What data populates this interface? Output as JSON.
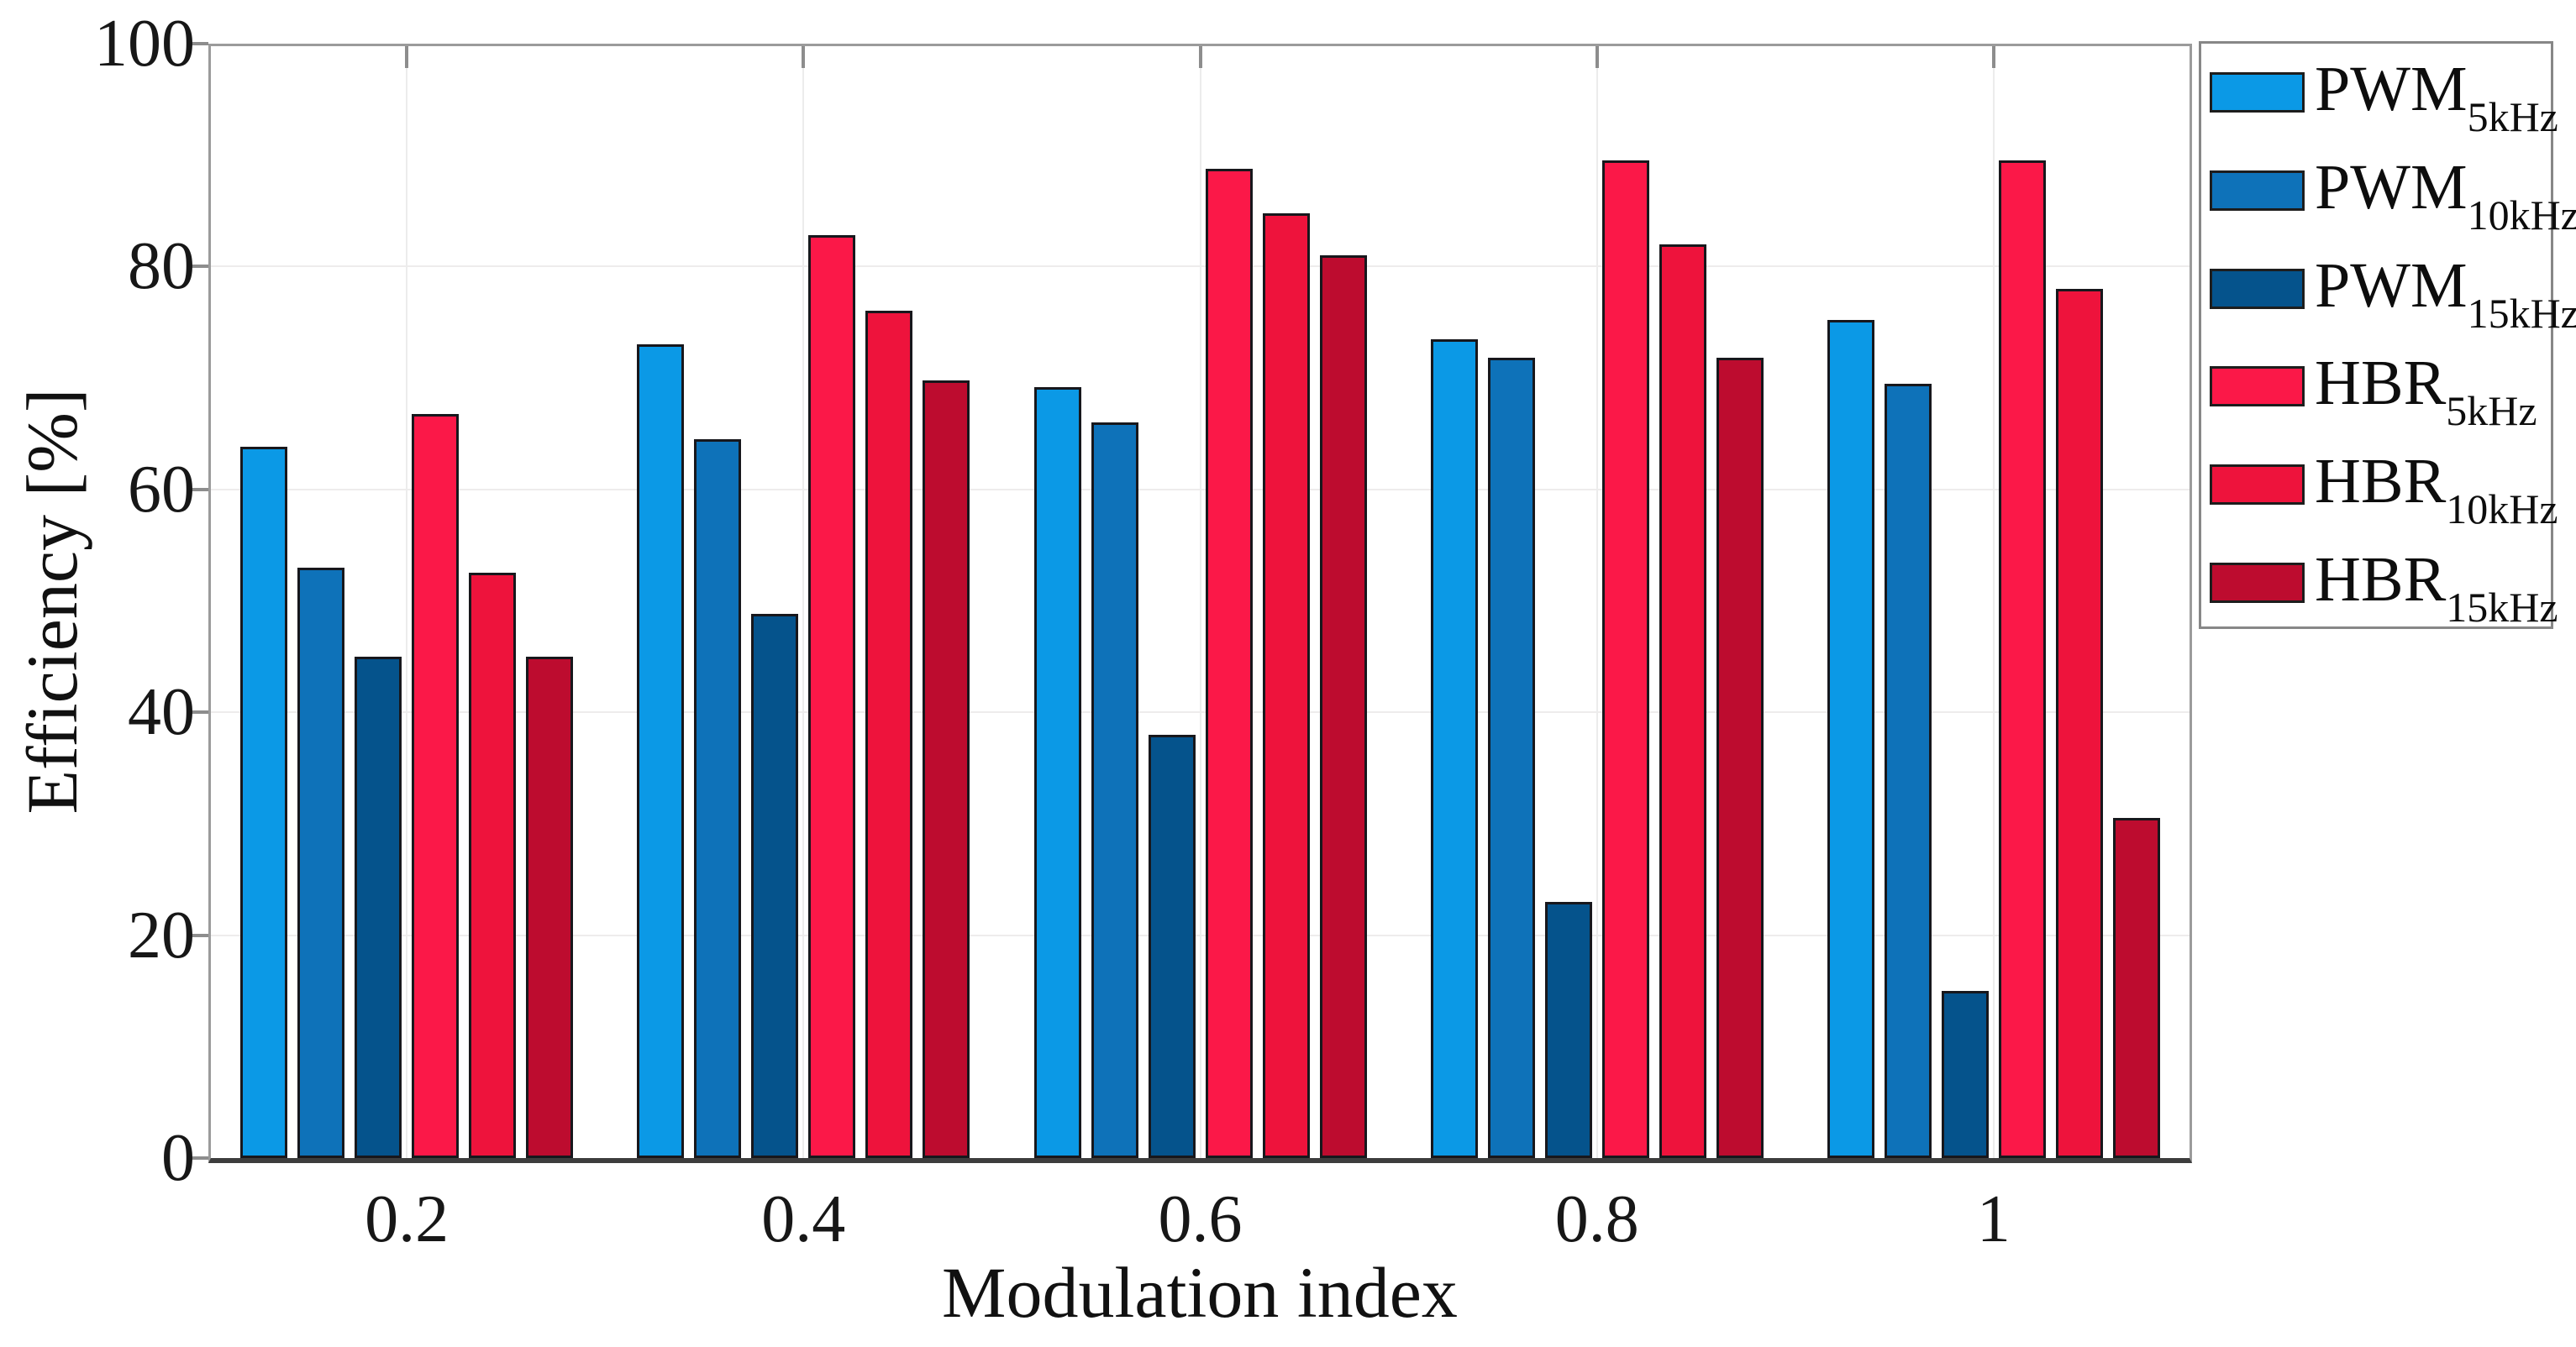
{
  "figure": {
    "background": "#ffffff"
  },
  "chart_data": {
    "type": "bar",
    "title": "",
    "xlabel": "Modulation index",
    "ylabel": "Efficiency [%]",
    "categories": [
      "0.2",
      "0.4",
      "0.6",
      "0.8",
      "1"
    ],
    "x_values": [
      0.2,
      0.4,
      0.6,
      0.8,
      1
    ],
    "ylim": [
      0,
      100
    ],
    "yticks": [
      0,
      20,
      40,
      60,
      80,
      100
    ],
    "grid": true,
    "legend_position": "upper-right-outside",
    "series": [
      {
        "name": "PWM_5kHz",
        "label_main": "PWM",
        "label_sub": "5kHz",
        "color": "#0B99E6",
        "values": [
          63.8,
          73.0,
          69.2,
          73.5,
          75.2
        ]
      },
      {
        "name": "PWM_10kHz",
        "label_main": "PWM",
        "label_sub": "10kHz",
        "color": "#0E72B9",
        "values": [
          53.0,
          64.5,
          66.0,
          71.8,
          69.5
        ]
      },
      {
        "name": "PWM_15kHz",
        "label_main": "PWM",
        "label_sub": "15kHz",
        "color": "#05538C",
        "values": [
          45.0,
          48.8,
          38.0,
          23.0,
          15.0
        ]
      },
      {
        "name": "HBR_5kHz",
        "label_main": "HBR",
        "label_sub": "5kHz",
        "color": "#FB1848",
        "values": [
          66.8,
          82.8,
          88.8,
          89.5,
          89.5
        ]
      },
      {
        "name": "HBR_10kHz",
        "label_main": "HBR",
        "label_sub": "10kHz",
        "color": "#EE133C",
        "values": [
          52.5,
          76.0,
          84.8,
          82.0,
          78.0
        ]
      },
      {
        "name": "HBR_15kHz",
        "label_main": "HBR",
        "label_sub": "15kHz",
        "color": "#BD0C2F",
        "values": [
          45.0,
          69.8,
          81.0,
          71.8,
          30.5
        ]
      }
    ]
  }
}
